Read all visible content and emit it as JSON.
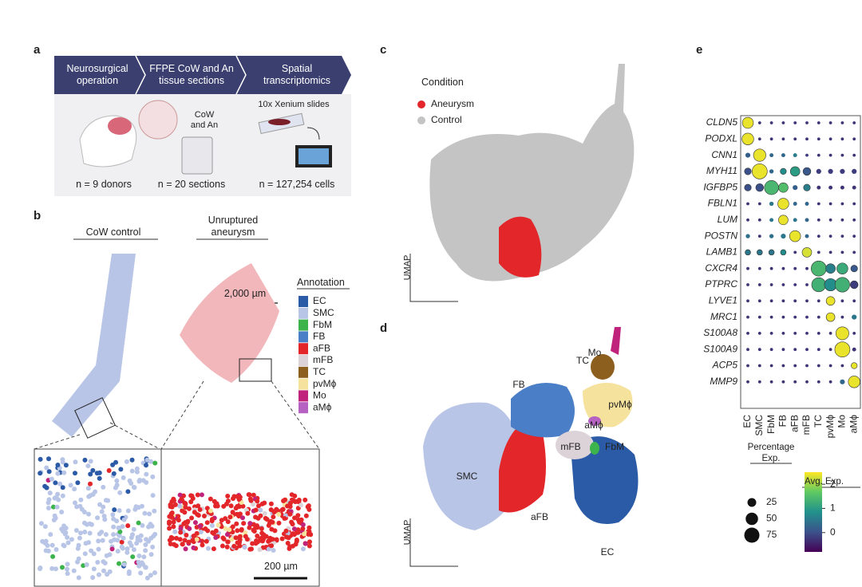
{
  "panel_labels": [
    "a",
    "b",
    "c",
    "d",
    "e"
  ],
  "panel_a": {
    "steps": [
      "Neurosurgical operation",
      "FFPE CoW and An tissue sections",
      "Spatial transcriptomics"
    ],
    "captions": [
      "CoW and An",
      "10x Xenium slides"
    ],
    "counts": [
      "n = 9 donors",
      "n = 20 sections",
      "n = 127,254 cells"
    ]
  },
  "panel_b": {
    "titles": [
      "CoW control",
      "Unruptured aneurysm"
    ],
    "scale_bars": [
      "2,000 µm",
      "200 µm"
    ],
    "legend_title": "Annotation",
    "annotations": [
      {
        "name": "EC",
        "color": "#2b5aa6"
      },
      {
        "name": "SMC",
        "color": "#b8c5e6"
      },
      {
        "name": "FbM",
        "color": "#3cb44b"
      },
      {
        "name": "FB",
        "color": "#4a7ec6"
      },
      {
        "name": "aFB",
        "color": "#e2262a"
      },
      {
        "name": "mFB",
        "color": "#dcd3d9"
      },
      {
        "name": "TC",
        "color": "#8c5f1f"
      },
      {
        "name": "pvMϕ",
        "color": "#f5e29c"
      },
      {
        "name": "Mo",
        "color": "#c0237b"
      },
      {
        "name": "aMϕ",
        "color": "#b562c2"
      }
    ]
  },
  "panel_c": {
    "legend_title": "Condition",
    "conditions": [
      {
        "name": "Aneurysm",
        "color": "#e2262a"
      },
      {
        "name": "Control",
        "color": "#c4c4c4"
      }
    ],
    "axis_label": "UMAP"
  },
  "panel_d": {
    "clusters": [
      "Mo",
      "TC",
      "FB",
      "pvMϕ",
      "aMϕ",
      "mFB",
      "FbM",
      "SMC",
      "aFB",
      "EC"
    ],
    "axis_label": "UMAP"
  },
  "panel_e": {
    "genes": [
      "CLDN5",
      "PODXL",
      "CNN1",
      "MYH11",
      "IGFBP5",
      "FBLN1",
      "LUM",
      "POSTN",
      "LAMB1",
      "CXCR4",
      "PTPRC",
      "LYVE1",
      "MRC1",
      "S100A8",
      "S100A9",
      "ACP5",
      "MMP9"
    ],
    "cell_types": [
      "EC",
      "SMC",
      "FbM",
      "FB",
      "aFB",
      "mFB",
      "TC",
      "pvMϕ",
      "Mo",
      "aMϕ"
    ],
    "pct": [
      [
        40,
        3,
        3,
        3,
        3,
        3,
        3,
        3,
        3,
        3
      ],
      [
        45,
        3,
        3,
        3,
        3,
        3,
        3,
        3,
        3,
        3
      ],
      [
        8,
        50,
        5,
        5,
        5,
        3,
        3,
        3,
        3,
        3
      ],
      [
        15,
        75,
        6,
        12,
        30,
        20,
        8,
        8,
        8,
        8
      ],
      [
        15,
        20,
        65,
        30,
        8,
        15,
        5,
        5,
        5,
        5
      ],
      [
        3,
        3,
        6,
        40,
        5,
        5,
        3,
        3,
        3,
        3
      ],
      [
        3,
        3,
        5,
        30,
        5,
        5,
        3,
        3,
        3,
        3
      ],
      [
        6,
        3,
        6,
        8,
        40,
        5,
        3,
        3,
        3,
        3
      ],
      [
        10,
        10,
        10,
        10,
        3,
        30,
        3,
        3,
        3,
        3
      ],
      [
        3,
        3,
        3,
        3,
        3,
        3,
        75,
        30,
        40,
        15
      ],
      [
        3,
        3,
        3,
        3,
        3,
        3,
        65,
        50,
        70,
        20
      ],
      [
        3,
        3,
        3,
        3,
        3,
        3,
        3,
        25,
        3,
        3
      ],
      [
        3,
        3,
        3,
        3,
        3,
        3,
        3,
        25,
        3,
        8
      ],
      [
        3,
        3,
        3,
        3,
        3,
        3,
        3,
        3,
        55,
        3
      ],
      [
        3,
        3,
        3,
        3,
        3,
        3,
        3,
        3,
        75,
        5
      ],
      [
        3,
        3,
        3,
        3,
        3,
        3,
        3,
        3,
        3,
        12
      ],
      [
        3,
        3,
        3,
        3,
        3,
        3,
        3,
        3,
        8,
        45
      ]
    ],
    "expr": [
      [
        2.4,
        -0.3,
        -0.3,
        -0.3,
        -0.3,
        -0.3,
        -0.3,
        -0.3,
        -0.3,
        -0.3
      ],
      [
        2.4,
        -0.3,
        -0.3,
        -0.3,
        -0.3,
        -0.3,
        -0.3,
        -0.3,
        -0.3,
        -0.3
      ],
      [
        0.2,
        2.4,
        0.3,
        0.3,
        0.6,
        -0.2,
        -0.3,
        -0.3,
        -0.3,
        -0.3
      ],
      [
        0,
        2.4,
        0.3,
        0.8,
        1,
        0.1,
        -0.2,
        -0.2,
        -0.2,
        -0.2
      ],
      [
        0,
        0,
        1.4,
        1.5,
        0.2,
        0.6,
        -0.3,
        -0.3,
        -0.3,
        -0.3
      ],
      [
        -0.3,
        -0.3,
        0.5,
        2.4,
        0.3,
        0.3,
        -0.3,
        -0.3,
        -0.3,
        -0.3
      ],
      [
        -0.3,
        -0.3,
        0.5,
        2.4,
        0.5,
        0.3,
        -0.3,
        -0.3,
        -0.3,
        -0.3
      ],
      [
        0.4,
        -0.3,
        0.4,
        0.5,
        2.4,
        0.3,
        -0.3,
        -0.3,
        -0.3,
        -0.3
      ],
      [
        0.5,
        0.5,
        0.5,
        0.8,
        -0.3,
        2.3,
        -0.3,
        -0.3,
        -0.3,
        -0.3
      ],
      [
        -0.3,
        -0.3,
        -0.3,
        -0.3,
        -0.3,
        -0.3,
        1.4,
        0.6,
        1.2,
        0.1
      ],
      [
        -0.3,
        -0.3,
        -0.3,
        -0.3,
        -0.3,
        -0.3,
        1.3,
        0.8,
        1.3,
        -0.2
      ],
      [
        -0.3,
        -0.3,
        -0.3,
        -0.3,
        -0.3,
        -0.3,
        -0.3,
        2.4,
        -0.3,
        -0.3
      ],
      [
        -0.3,
        -0.3,
        -0.3,
        -0.3,
        -0.3,
        -0.3,
        -0.3,
        2.4,
        -0.3,
        0.5
      ],
      [
        -0.3,
        -0.3,
        -0.3,
        -0.3,
        -0.3,
        -0.3,
        -0.3,
        -0.3,
        2.4,
        -0.3
      ],
      [
        -0.3,
        -0.3,
        -0.3,
        -0.3,
        -0.3,
        -0.3,
        -0.3,
        -0.3,
        2.4,
        -0.3
      ],
      [
        -0.3,
        -0.3,
        -0.3,
        -0.3,
        -0.3,
        -0.3,
        -0.3,
        -0.3,
        -0.3,
        2.4
      ],
      [
        -0.3,
        -0.3,
        -0.3,
        -0.3,
        -0.3,
        -0.3,
        -0.3,
        -0.3,
        0.3,
        2.4
      ]
    ],
    "size_legend_title": "Percentage Exp.",
    "size_legend_values": [
      25,
      50,
      75
    ],
    "color_legend_title": "Avg. Exp.",
    "colorbar_ticks": [
      2,
      1,
      0
    ],
    "clim": [
      -0.8,
      2.5
    ]
  }
}
